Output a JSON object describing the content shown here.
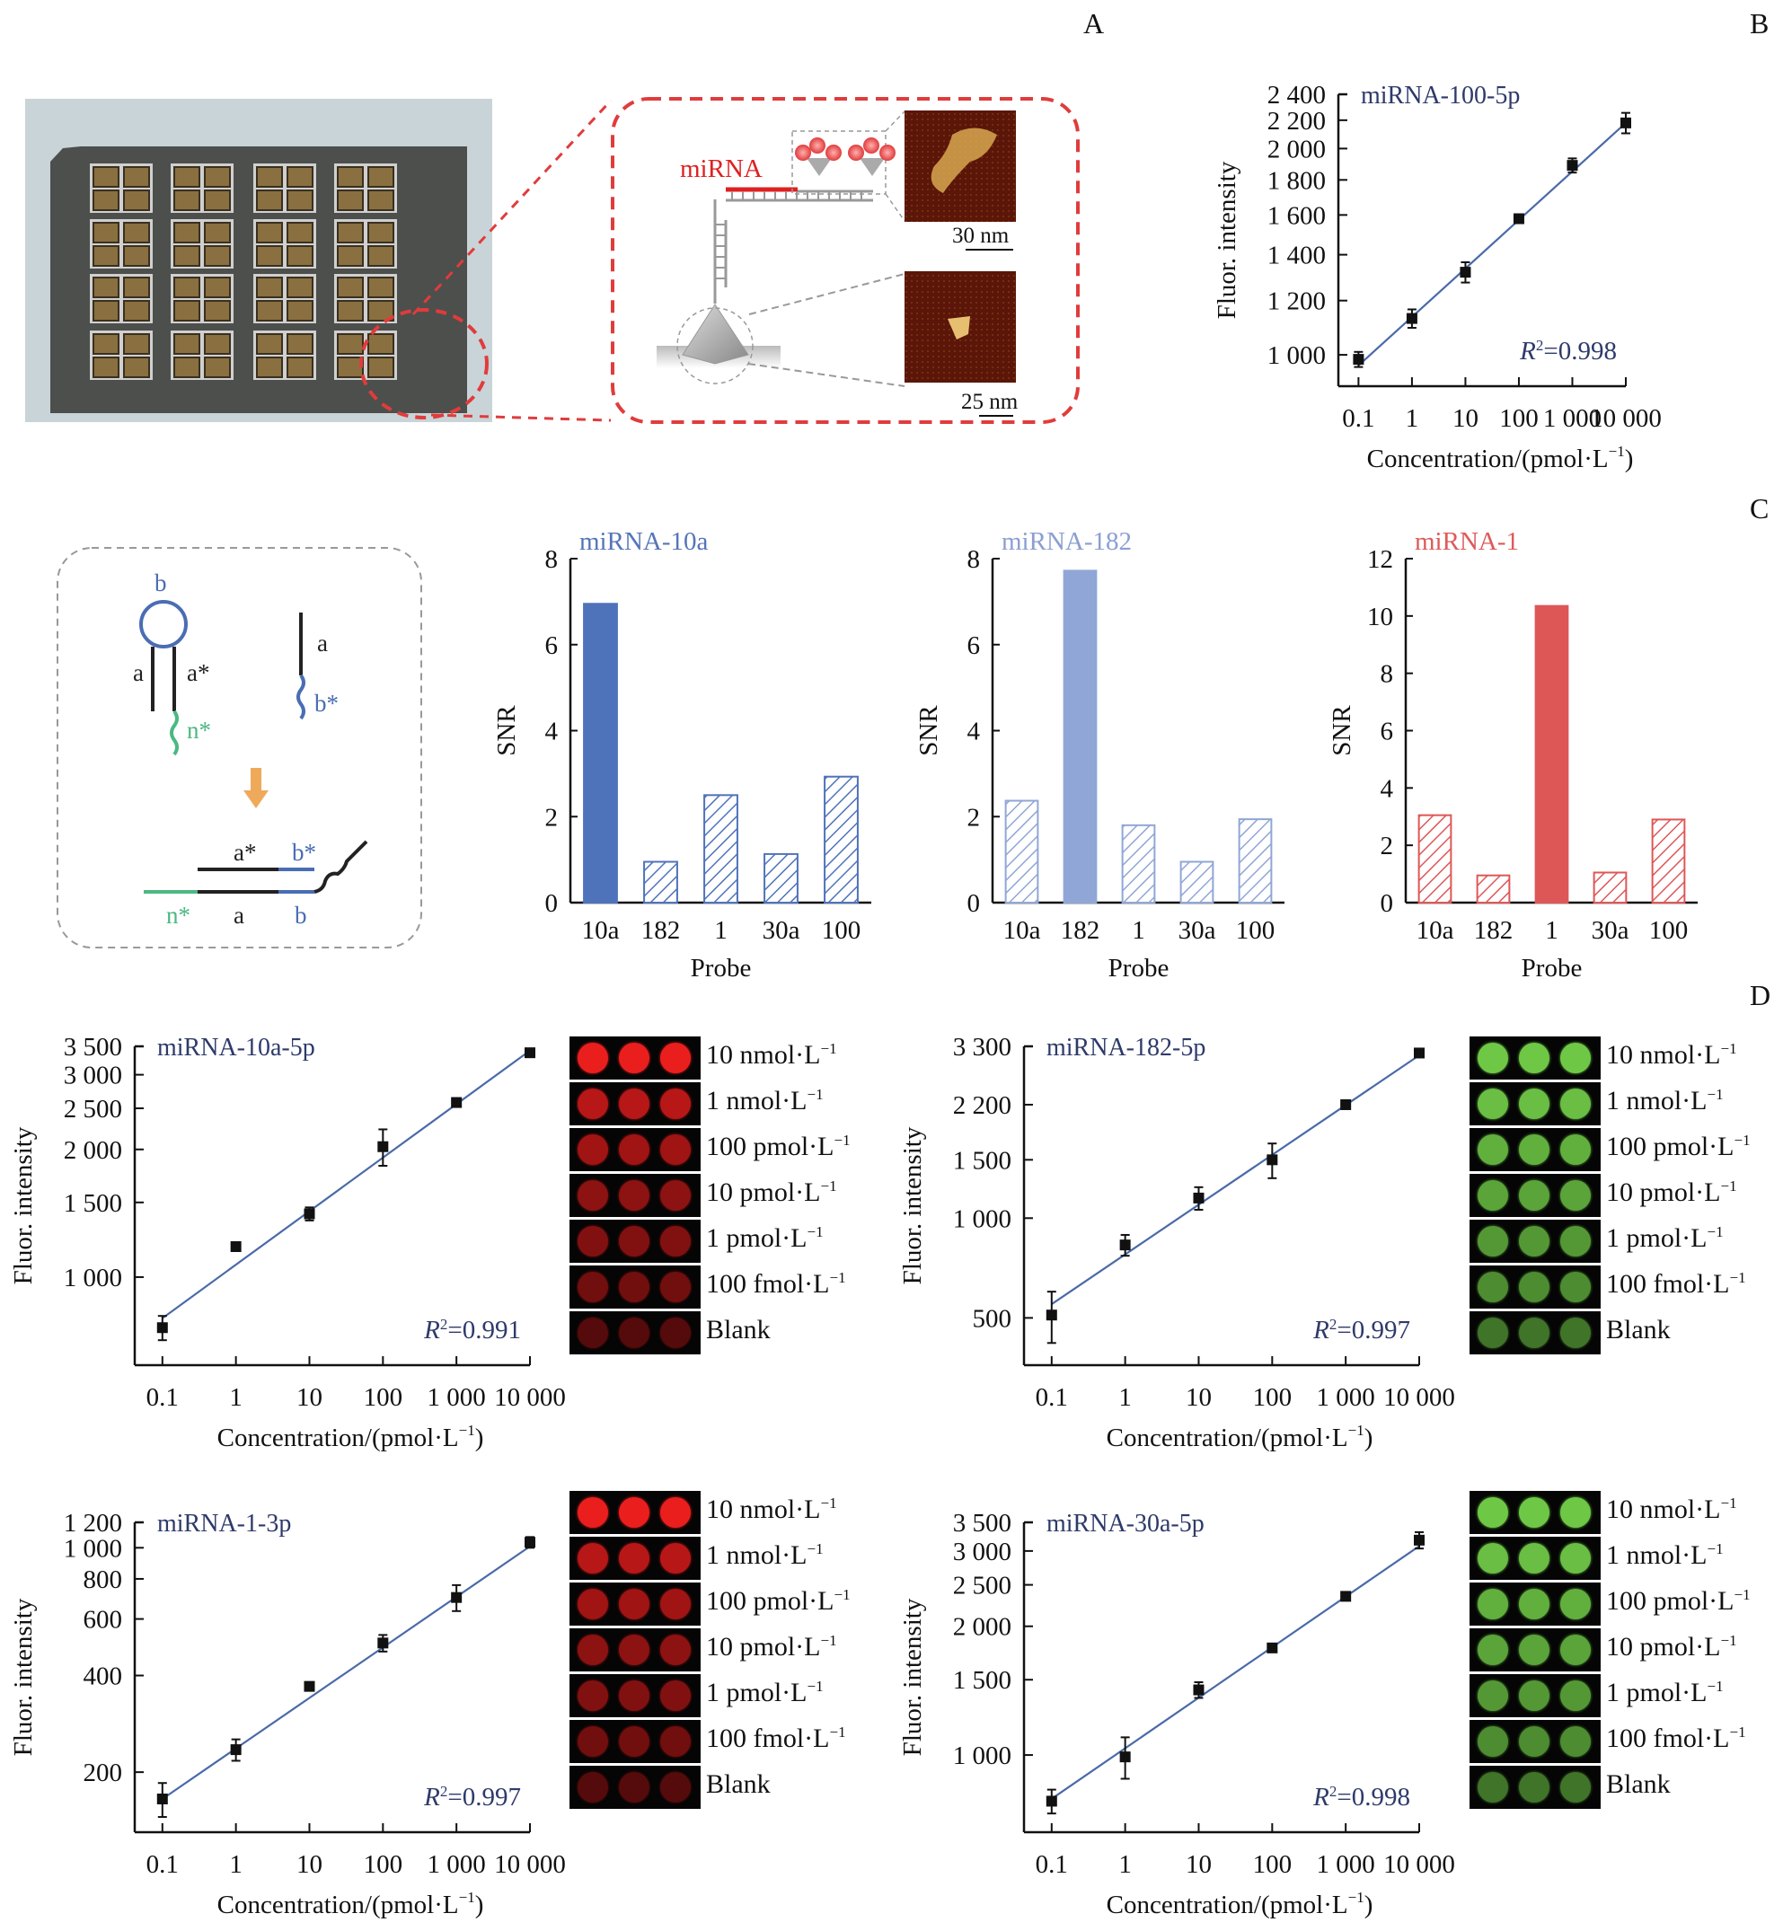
{
  "panel_labels": {
    "A": "A",
    "B": "B",
    "C": "C",
    "D": "D"
  },
  "panel_a": {
    "photo_subject": "gold-well-chip-array",
    "schematic": {
      "mirna_label": "miRNA",
      "scalebar_top": "30 nm",
      "scalebar_bottom": "25 nm"
    },
    "colors": {
      "highlight": "#e03c3c",
      "mirna": "#e02020"
    }
  },
  "panel_c_diagram": {
    "hairpin_loop": "b",
    "stem_left": "a",
    "stem_right": "a*",
    "toehold": "n*",
    "helper_top": "a",
    "helper_tail": "b*",
    "product_top_left": "a*",
    "product_top_right": "b*",
    "product_bottom_n": "n*",
    "product_bottom_a": "a",
    "product_bottom_b": "b",
    "colors": {
      "blue": "#4a6db3",
      "green": "#4cb882",
      "arrow": "#eea95a",
      "black": "#222222"
    }
  },
  "fluor_images": {
    "labels": [
      "10 nmol·L",
      "1 nmol·L",
      "100 pmol·L",
      "10 pmol·L",
      "1 pmol·L",
      "100 fmol·L",
      "Blank"
    ],
    "superscript": "−1",
    "red_levels": [
      1.0,
      0.78,
      0.68,
      0.6,
      0.55,
      0.48,
      0.36
    ],
    "green_levels": [
      1.0,
      0.95,
      0.88,
      0.82,
      0.76,
      0.7,
      0.58
    ]
  },
  "chart_data": [
    {
      "id": "B",
      "type": "scatter",
      "title": "miRNA-100-5p",
      "xlabel": "Concentration/(pmol·L",
      "xlabel_sup": "−1",
      "ylabel": "Fluor. intensity",
      "xscale": "log",
      "yscale": "log",
      "x": [
        0.1,
        1,
        10,
        100,
        1000,
        10000
      ],
      "x_tick_labels": [
        "0.1",
        "1",
        "10",
        "100",
        "1 000",
        "10 000"
      ],
      "y": [
        985,
        1130,
        1320,
        1580,
        1890,
        2180
      ],
      "yerr": [
        25,
        35,
        45,
        20,
        45,
        75
      ],
      "y_ticks": [
        1000,
        1200,
        1400,
        1600,
        1800,
        2000,
        2200,
        2400
      ],
      "y_tick_labels": [
        "1 000",
        "1 200",
        "1 400",
        "1 600",
        "1 800",
        "2 000",
        "2 200",
        "2 400"
      ],
      "ylim": [
        900,
        2400
      ],
      "fit": [
        965,
        2180
      ],
      "annotation": "R²=0.998",
      "r2": "0.998"
    },
    {
      "id": "C1",
      "type": "bar",
      "title": "miRNA-10a",
      "title_color": "#5575b8",
      "xlabel": "Probe",
      "ylabel": "SNR",
      "categories": [
        "10a",
        "182",
        "1",
        "30a",
        "100"
      ],
      "values": [
        6.95,
        0.95,
        2.5,
        1.13,
        2.93
      ],
      "highlight_index": 0,
      "color": "#4f73bb",
      "ylim": [
        0,
        8
      ],
      "y_ticks": [
        0,
        2,
        4,
        6,
        8
      ]
    },
    {
      "id": "C2",
      "type": "bar",
      "title": "miRNA-182",
      "title_color": "#8a9fd1",
      "xlabel": "Probe",
      "ylabel": "SNR",
      "categories": [
        "10a",
        "182",
        "1",
        "30a",
        "100"
      ],
      "values": [
        2.37,
        7.72,
        1.8,
        0.95,
        1.94
      ],
      "highlight_index": 1,
      "color": "#90a6d6",
      "ylim": [
        0,
        8
      ],
      "y_ticks": [
        0,
        2,
        4,
        6,
        8
      ]
    },
    {
      "id": "C3",
      "type": "bar",
      "title": "miRNA-1",
      "title_color": "#dd5a5a",
      "xlabel": "Probe",
      "ylabel": "SNR",
      "categories": [
        "10a",
        "182",
        "1",
        "30a",
        "100"
      ],
      "values": [
        3.05,
        0.95,
        10.35,
        1.05,
        2.9
      ],
      "highlight_index": 2,
      "color": "#de5757",
      "ylim": [
        0,
        12
      ],
      "y_ticks": [
        0,
        2,
        4,
        6,
        8,
        10,
        12
      ]
    },
    {
      "id": "D1",
      "type": "scatter",
      "title": "miRNA-10a-5p",
      "xlabel": "Concentration/(pmol·L",
      "xlabel_sup": "−1",
      "ylabel": "Fluor. intensity",
      "xscale": "log",
      "yscale": "log",
      "x": [
        0.1,
        1,
        10,
        100,
        1000,
        10000
      ],
      "x_tick_labels": [
        "0.1",
        "1",
        "10",
        "100",
        "1 000",
        "10 000"
      ],
      "y": [
        760,
        1180,
        1410,
        2030,
        2580,
        3380
      ],
      "yerr": [
        50,
        20,
        50,
        200,
        60,
        30
      ],
      "y_ticks": [
        1000,
        1500,
        2000,
        2500,
        3000,
        3500
      ],
      "y_tick_labels": [
        "1 000",
        "1 500",
        "2 000",
        "2 500",
        "3 000",
        "3 500"
      ],
      "ylim": [
        620,
        3500
      ],
      "fit": [
        800,
        3420
      ],
      "annotation": "R²=0.991",
      "r2": "0.991"
    },
    {
      "id": "D2",
      "type": "scatter",
      "title": "miRNA-182-5p",
      "xlabel": "Concentration/(pmol·L",
      "xlabel_sup": "−1",
      "ylabel": "Fluor. intensity",
      "xscale": "log",
      "yscale": "log",
      "x": [
        0.1,
        1,
        10,
        100,
        1000,
        10000
      ],
      "x_tick_labels": [
        "0.1",
        "1",
        "10",
        "100",
        "1 000",
        "10 000"
      ],
      "y": [
        510,
        830,
        1150,
        1500,
        2200,
        3150
      ],
      "yerr": [
        90,
        60,
        90,
        180,
        40,
        40
      ],
      "y_ticks": [
        500,
        1000,
        1500,
        2200,
        3300
      ],
      "y_tick_labels": [
        "500",
        "1 000",
        "1 500",
        "2 200",
        "3 300"
      ],
      "ylim": [
        360,
        3300
      ],
      "fit": [
        550,
        3100
      ],
      "annotation": "R²=0.997",
      "r2": "0.997"
    },
    {
      "id": "D3",
      "type": "scatter",
      "title": "miRNA-1-3p",
      "xlabel": "Concentration/(pmol·L",
      "xlabel_sup": "−1",
      "ylabel": "Fluor. intensity",
      "xscale": "log",
      "yscale": "log",
      "x": [
        0.1,
        1,
        10,
        100,
        1000,
        10000
      ],
      "x_tick_labels": [
        "0.1",
        "1",
        "10",
        "100",
        "1 000",
        "10 000"
      ],
      "y": [
        165,
        235,
        370,
        505,
        700,
        1040
      ],
      "yerr": [
        20,
        18,
        10,
        30,
        65,
        40
      ],
      "y_ticks": [
        200,
        400,
        600,
        800,
        1000,
        1200
      ],
      "y_tick_labels": [
        "200",
        "400",
        "600",
        "800",
        "1 000",
        "1 200"
      ],
      "ylim": [
        130,
        1200
      ],
      "fit": [
        165,
        1010
      ],
      "annotation": "R²=0.997",
      "r2": "0.997"
    },
    {
      "id": "D4",
      "type": "scatter",
      "title": "miRNA-30a-5p",
      "xlabel": "Concentration/(pmol·L",
      "xlabel_sup": "−1",
      "ylabel": "Fluor. intensity",
      "xscale": "log",
      "yscale": "log",
      "x": [
        0.1,
        1,
        10,
        100,
        1000,
        10000
      ],
      "x_tick_labels": [
        "0.1",
        "1",
        "10",
        "100",
        "1 000",
        "10 000"
      ],
      "y": [
        780,
        990,
        1420,
        1780,
        2350,
        3180
      ],
      "yerr": [
        50,
        110,
        60,
        30,
        40,
        140
      ],
      "y_ticks": [
        1000,
        1500,
        2000,
        2500,
        3000,
        3500
      ],
      "y_tick_labels": [
        "1 000",
        "1 500",
        "2 000",
        "2 500",
        "3 000",
        "3 500"
      ],
      "ylim": [
        660,
        3500
      ],
      "fit": [
        790,
        3080
      ],
      "annotation": "R²=0.998",
      "r2": "0.998"
    }
  ]
}
